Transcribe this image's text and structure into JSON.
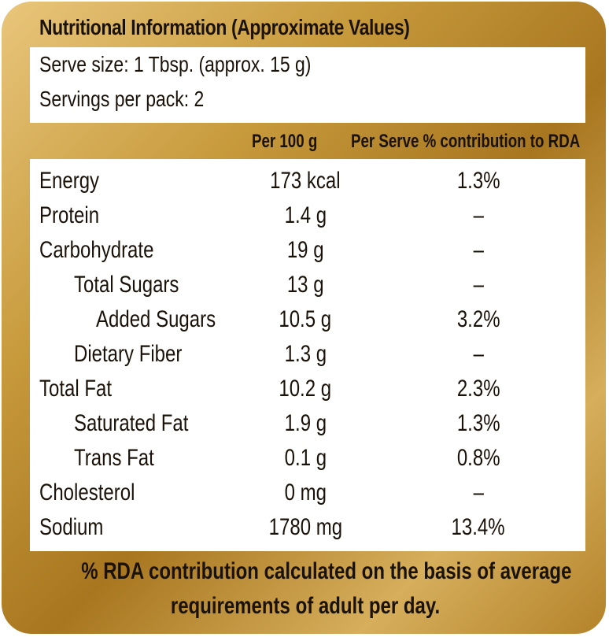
{
  "title": "Nutritional Information (Approximate Values)",
  "serve": {
    "size": "Serve size: 1 Tbsp. (approx. 15 g)",
    "servings": "Servings per pack: 2"
  },
  "headers": {
    "per100": "Per 100 g",
    "perServe": "Per Serve % contribution to RDA"
  },
  "rows": [
    {
      "name": "Energy",
      "per100": "173 kcal",
      "rda": "1.3%"
    },
    {
      "name": "Protein",
      "per100": "1.4 g",
      "rda": "–"
    },
    {
      "name": "Carbohydrate",
      "per100": "19 g",
      "rda": "–"
    },
    {
      "name": "Total Sugars",
      "per100": "13 g",
      "rda": "–"
    },
    {
      "name": "Added Sugars",
      "per100": "10.5 g",
      "rda": "3.2%"
    },
    {
      "name": "Dietary Fiber",
      "per100": "1.3 g",
      "rda": "–"
    },
    {
      "name": "Total Fat",
      "per100": "10.2 g",
      "rda": "2.3%"
    },
    {
      "name": "Saturated Fat",
      "per100": "1.9 g",
      "rda": "1.3%"
    },
    {
      "name": "Trans Fat",
      "per100": "0.1 g",
      "rda": "0.8%"
    },
    {
      "name": "Cholesterol",
      "per100": "0 mg",
      "rda": "–"
    },
    {
      "name": "Sodium",
      "per100": "1780 mg",
      "rda": "13.4%"
    }
  ],
  "footer": {
    "line1": "% RDA contribution calculated on the basis of average",
    "line2": "requirements of adult per day."
  },
  "colors": {
    "gold": "#c79a3c",
    "text": "#1a1208"
  }
}
